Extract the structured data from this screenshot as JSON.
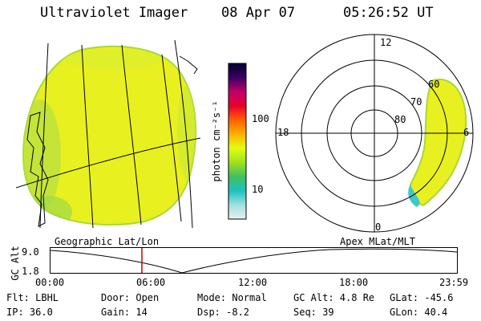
{
  "header": {
    "instrument": "Ultraviolet Imager",
    "date": "08 Apr 07",
    "time": "05:26:52 UT"
  },
  "colorbar": {
    "unit_label": "photon cm⁻²s⁻¹",
    "ticks": [
      "100",
      "10"
    ],
    "colors": [
      "#000033",
      "#3a0060",
      "#c0006a",
      "#e8002a",
      "#ff6000",
      "#ffb000",
      "#e0ff10",
      "#a0e020",
      "#40c060",
      "#20c0c0",
      "#a0e0e0",
      "#e8f0f0"
    ]
  },
  "geo_panel": {
    "label": "Geographic Lat/Lon",
    "glow_color": "#e8f020"
  },
  "polar_panel": {
    "label": "Apex MLat/MLT",
    "mlt_labels": {
      "top": "12",
      "left": "18",
      "right": "6",
      "bottom": "0"
    },
    "lat_labels": [
      "60",
      "70",
      "80"
    ]
  },
  "timeline": {
    "axis_label": "GC Alt",
    "y_ticks": [
      "9.0",
      "1.8"
    ],
    "x_ticks": [
      "00:00",
      "06:00",
      "12:00",
      "18:00",
      "23:59"
    ],
    "marker_color": "#cc0000"
  },
  "footer": {
    "row1": {
      "filter": "Flt: LBHL",
      "door": "Door: Open",
      "mode": "Mode: Normal",
      "gc_alt": "GC Alt: 4.8 Re",
      "glat": "GLat: -45.6"
    },
    "row2": {
      "ip": "IP: 36.0",
      "gain": "Gain: 14",
      "dsp": "Dsp:   -8.2",
      "seq": "Seq: 39",
      "glon": "GLon:  40.4"
    }
  }
}
